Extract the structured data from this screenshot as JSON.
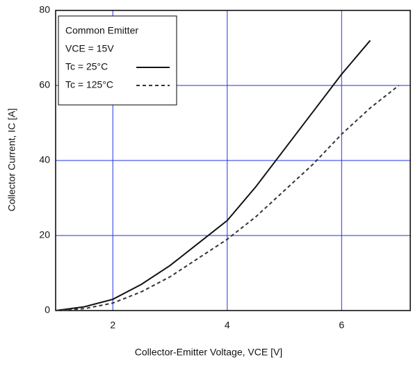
{
  "chart_data": {
    "type": "line",
    "xlabel": "Collector-Emitter Voltage, VCE [V]",
    "ylabel": "Collector Current, IC [A]",
    "legend_title": "Common Emitter",
    "legend_note": "VCE = 15V",
    "x": [
      1,
      1.5,
      2,
      2.5,
      3,
      3.5,
      4,
      4.5,
      5,
      5.5,
      6,
      6.5,
      7
    ],
    "series": [
      {
        "name": "Tc = 25°C",
        "color": "#111111",
        "dash": "solid",
        "values": [
          0,
          1,
          3,
          7,
          12,
          18,
          24,
          33,
          43,
          53,
          63,
          72,
          null
        ]
      },
      {
        "name": "Tc = 125°C",
        "color": "#333333",
        "dash": "dashed",
        "values": [
          0,
          0.5,
          2,
          5,
          9,
          14,
          19,
          25,
          32,
          39,
          47,
          54,
          60
        ]
      }
    ],
    "xlim": [
      1,
      7.2
    ],
    "xticks": [
      2,
      4,
      6
    ],
    "ylim": [
      0,
      80
    ],
    "yticks": [
      0,
      20,
      40,
      60,
      80
    ],
    "grid": true,
    "grid_color": "#2233dd",
    "legend": "upper left"
  }
}
